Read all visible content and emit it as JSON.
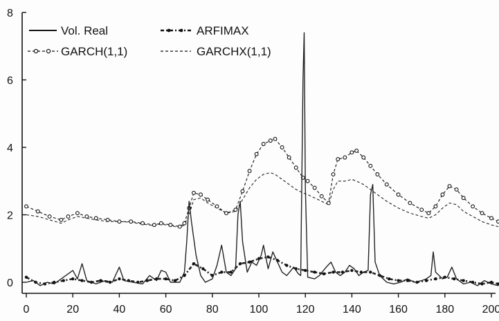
{
  "chart_data": {
    "type": "line",
    "title": "",
    "xlabel": "",
    "ylabel": "",
    "xlim": [
      0,
      200
    ],
    "ylim": [
      -0.3,
      8
    ],
    "x_ticks": [
      0,
      20,
      40,
      60,
      80,
      100,
      120,
      140,
      160,
      180,
      200
    ],
    "y_ticks": [
      0,
      2,
      4,
      6,
      8
    ],
    "grid": false,
    "legend_position": "top-left",
    "colors": {
      "axis": "#111111",
      "series": "#222222"
    },
    "series": [
      {
        "name": "Vol. Real",
        "style": "solid",
        "points": [
          [
            0,
            0.0
          ],
          [
            3,
            0.05
          ],
          [
            6,
            -0.1
          ],
          [
            9,
            0.0
          ],
          [
            12,
            -0.05
          ],
          [
            15,
            0.1
          ],
          [
            18,
            0.25
          ],
          [
            20,
            0.35
          ],
          [
            22,
            0.1
          ],
          [
            24,
            0.55
          ],
          [
            26,
            0.05
          ],
          [
            30,
            -0.05
          ],
          [
            34,
            0.05
          ],
          [
            37,
            0.0
          ],
          [
            39,
            0.3
          ],
          [
            40,
            0.45
          ],
          [
            42,
            0.05
          ],
          [
            46,
            0.0
          ],
          [
            50,
            -0.05
          ],
          [
            53,
            0.2
          ],
          [
            56,
            0.05
          ],
          [
            58,
            0.35
          ],
          [
            60,
            0.3
          ],
          [
            62,
            0.0
          ],
          [
            66,
            0.0
          ],
          [
            68,
            0.3
          ],
          [
            69,
            1.2
          ],
          [
            70,
            2.4
          ],
          [
            71,
            1.8
          ],
          [
            73,
            0.8
          ],
          [
            75,
            0.2
          ],
          [
            77,
            0.0
          ],
          [
            80,
            0.1
          ],
          [
            82,
            0.5
          ],
          [
            84,
            1.1
          ],
          [
            86,
            0.3
          ],
          [
            88,
            0.2
          ],
          [
            90,
            0.4
          ],
          [
            91,
            2.0
          ],
          [
            92,
            2.4
          ],
          [
            93,
            1.2
          ],
          [
            95,
            0.3
          ],
          [
            97,
            0.6
          ],
          [
            99,
            0.5
          ],
          [
            101,
            0.8
          ],
          [
            102,
            1.1
          ],
          [
            104,
            0.4
          ],
          [
            106,
            0.9
          ],
          [
            108,
            0.6
          ],
          [
            110,
            0.3
          ],
          [
            112,
            0.2
          ],
          [
            115,
            0.45
          ],
          [
            117,
            0.25
          ],
          [
            118,
            0.2
          ],
          [
            119,
            6.0
          ],
          [
            119.5,
            7.4
          ],
          [
            120,
            2.8
          ],
          [
            121,
            0.15
          ],
          [
            124,
            0.1
          ],
          [
            126,
            0.2
          ],
          [
            129,
            0.45
          ],
          [
            131,
            0.6
          ],
          [
            133,
            0.3
          ],
          [
            135,
            0.2
          ],
          [
            137,
            0.3
          ],
          [
            139,
            0.5
          ],
          [
            141,
            0.4
          ],
          [
            143,
            0.2
          ],
          [
            145,
            0.3
          ],
          [
            147,
            0.35
          ],
          [
            148,
            2.6
          ],
          [
            149,
            2.9
          ],
          [
            150,
            0.6
          ],
          [
            152,
            0.2
          ],
          [
            155,
            0.0
          ],
          [
            158,
            -0.05
          ],
          [
            161,
            0.0
          ],
          [
            164,
            0.1
          ],
          [
            167,
            0.0
          ],
          [
            170,
            0.05
          ],
          [
            172,
            0.1
          ],
          [
            174,
            0.2
          ],
          [
            175,
            0.9
          ],
          [
            176,
            0.3
          ],
          [
            179,
            0.1
          ],
          [
            181,
            0.15
          ],
          [
            183,
            0.45
          ],
          [
            185,
            0.1
          ],
          [
            188,
            -0.05
          ],
          [
            191,
            0.0
          ],
          [
            194,
            -0.1
          ],
          [
            197,
            0.05
          ],
          [
            200,
            -0.05
          ],
          [
            203,
            -0.1
          ]
        ]
      },
      {
        "name": "ARFIMAX",
        "style": "dash-dot-heavy",
        "points": [
          [
            0,
            0.15
          ],
          [
            4,
            0.0
          ],
          [
            8,
            -0.05
          ],
          [
            12,
            0.0
          ],
          [
            16,
            0.05
          ],
          [
            20,
            0.1
          ],
          [
            24,
            0.05
          ],
          [
            28,
            0.0
          ],
          [
            32,
            0.05
          ],
          [
            36,
            0.0
          ],
          [
            40,
            0.1
          ],
          [
            44,
            0.05
          ],
          [
            48,
            0.0
          ],
          [
            52,
            0.05
          ],
          [
            56,
            0.1
          ],
          [
            60,
            0.1
          ],
          [
            64,
            0.05
          ],
          [
            68,
            0.2
          ],
          [
            72,
            0.55
          ],
          [
            76,
            0.4
          ],
          [
            80,
            0.2
          ],
          [
            84,
            0.3
          ],
          [
            88,
            0.3
          ],
          [
            92,
            0.55
          ],
          [
            96,
            0.6
          ],
          [
            100,
            0.7
          ],
          [
            104,
            0.75
          ],
          [
            108,
            0.65
          ],
          [
            112,
            0.5
          ],
          [
            116,
            0.4
          ],
          [
            120,
            0.35
          ],
          [
            124,
            0.3
          ],
          [
            128,
            0.25
          ],
          [
            132,
            0.3
          ],
          [
            136,
            0.3
          ],
          [
            140,
            0.35
          ],
          [
            144,
            0.3
          ],
          [
            148,
            0.3
          ],
          [
            152,
            0.2
          ],
          [
            156,
            0.1
          ],
          [
            160,
            0.05
          ],
          [
            164,
            0.05
          ],
          [
            168,
            0.0
          ],
          [
            172,
            0.05
          ],
          [
            176,
            0.1
          ],
          [
            180,
            0.15
          ],
          [
            184,
            0.1
          ],
          [
            188,
            0.05
          ],
          [
            192,
            0.0
          ],
          [
            196,
            -0.05
          ],
          [
            200,
            0.0
          ],
          [
            203,
            -0.05
          ]
        ]
      },
      {
        "name": "GARCH(1,1)",
        "style": "dash-dot-marker",
        "points": [
          [
            0,
            2.25
          ],
          [
            5,
            2.1
          ],
          [
            10,
            1.95
          ],
          [
            15,
            1.85
          ],
          [
            18,
            1.95
          ],
          [
            22,
            2.05
          ],
          [
            26,
            1.95
          ],
          [
            30,
            1.9
          ],
          [
            35,
            1.85
          ],
          [
            40,
            1.8
          ],
          [
            45,
            1.8
          ],
          [
            50,
            1.75
          ],
          [
            55,
            1.7
          ],
          [
            58,
            1.75
          ],
          [
            62,
            1.7
          ],
          [
            66,
            1.65
          ],
          [
            68,
            1.75
          ],
          [
            70,
            2.2
          ],
          [
            72,
            2.65
          ],
          [
            75,
            2.6
          ],
          [
            78,
            2.45
          ],
          [
            82,
            2.25
          ],
          [
            86,
            2.05
          ],
          [
            90,
            2.15
          ],
          [
            93,
            2.7
          ],
          [
            96,
            3.3
          ],
          [
            99,
            3.8
          ],
          [
            102,
            4.1
          ],
          [
            105,
            4.2
          ],
          [
            107,
            4.25
          ],
          [
            110,
            4.0
          ],
          [
            113,
            3.7
          ],
          [
            116,
            3.4
          ],
          [
            119,
            3.1
          ],
          [
            121,
            3.0
          ],
          [
            124,
            2.8
          ],
          [
            127,
            2.55
          ],
          [
            130,
            2.35
          ],
          [
            132,
            3.2
          ],
          [
            134,
            3.65
          ],
          [
            137,
            3.7
          ],
          [
            140,
            3.85
          ],
          [
            142,
            3.9
          ],
          [
            145,
            3.7
          ],
          [
            148,
            3.45
          ],
          [
            151,
            3.2
          ],
          [
            155,
            2.9
          ],
          [
            160,
            2.6
          ],
          [
            165,
            2.35
          ],
          [
            170,
            2.15
          ],
          [
            173,
            2.05
          ],
          [
            176,
            2.25
          ],
          [
            179,
            2.6
          ],
          [
            182,
            2.85
          ],
          [
            185,
            2.75
          ],
          [
            188,
            2.5
          ],
          [
            192,
            2.25
          ],
          [
            196,
            2.05
          ],
          [
            200,
            1.9
          ],
          [
            203,
            1.8
          ]
        ]
      },
      {
        "name": "GARCHX(1,1)",
        "style": "dashed",
        "points": [
          [
            0,
            2.0
          ],
          [
            5,
            1.95
          ],
          [
            10,
            1.85
          ],
          [
            15,
            1.75
          ],
          [
            18,
            1.85
          ],
          [
            22,
            1.95
          ],
          [
            26,
            1.9
          ],
          [
            30,
            1.85
          ],
          [
            35,
            1.8
          ],
          [
            40,
            1.8
          ],
          [
            45,
            1.78
          ],
          [
            50,
            1.72
          ],
          [
            55,
            1.68
          ],
          [
            58,
            1.72
          ],
          [
            62,
            1.68
          ],
          [
            66,
            1.62
          ],
          [
            68,
            1.7
          ],
          [
            70,
            2.0
          ],
          [
            72,
            2.45
          ],
          [
            75,
            2.5
          ],
          [
            78,
            2.35
          ],
          [
            82,
            2.2
          ],
          [
            86,
            2.05
          ],
          [
            90,
            2.1
          ],
          [
            93,
            2.45
          ],
          [
            96,
            2.8
          ],
          [
            99,
            3.05
          ],
          [
            102,
            3.2
          ],
          [
            105,
            3.25
          ],
          [
            107,
            3.2
          ],
          [
            110,
            3.05
          ],
          [
            113,
            2.9
          ],
          [
            116,
            2.75
          ],
          [
            119,
            2.65
          ],
          [
            121,
            2.6
          ],
          [
            124,
            2.5
          ],
          [
            127,
            2.4
          ],
          [
            130,
            2.3
          ],
          [
            132,
            2.75
          ],
          [
            134,
            3.0
          ],
          [
            137,
            3.0
          ],
          [
            140,
            3.05
          ],
          [
            142,
            3.0
          ],
          [
            145,
            2.9
          ],
          [
            148,
            2.75
          ],
          [
            151,
            2.6
          ],
          [
            155,
            2.4
          ],
          [
            160,
            2.2
          ],
          [
            165,
            2.05
          ],
          [
            170,
            1.95
          ],
          [
            173,
            1.9
          ],
          [
            176,
            2.0
          ],
          [
            179,
            2.2
          ],
          [
            182,
            2.35
          ],
          [
            185,
            2.3
          ],
          [
            188,
            2.1
          ],
          [
            192,
            1.95
          ],
          [
            196,
            1.8
          ],
          [
            200,
            1.7
          ],
          [
            203,
            1.65
          ]
        ]
      }
    ]
  }
}
